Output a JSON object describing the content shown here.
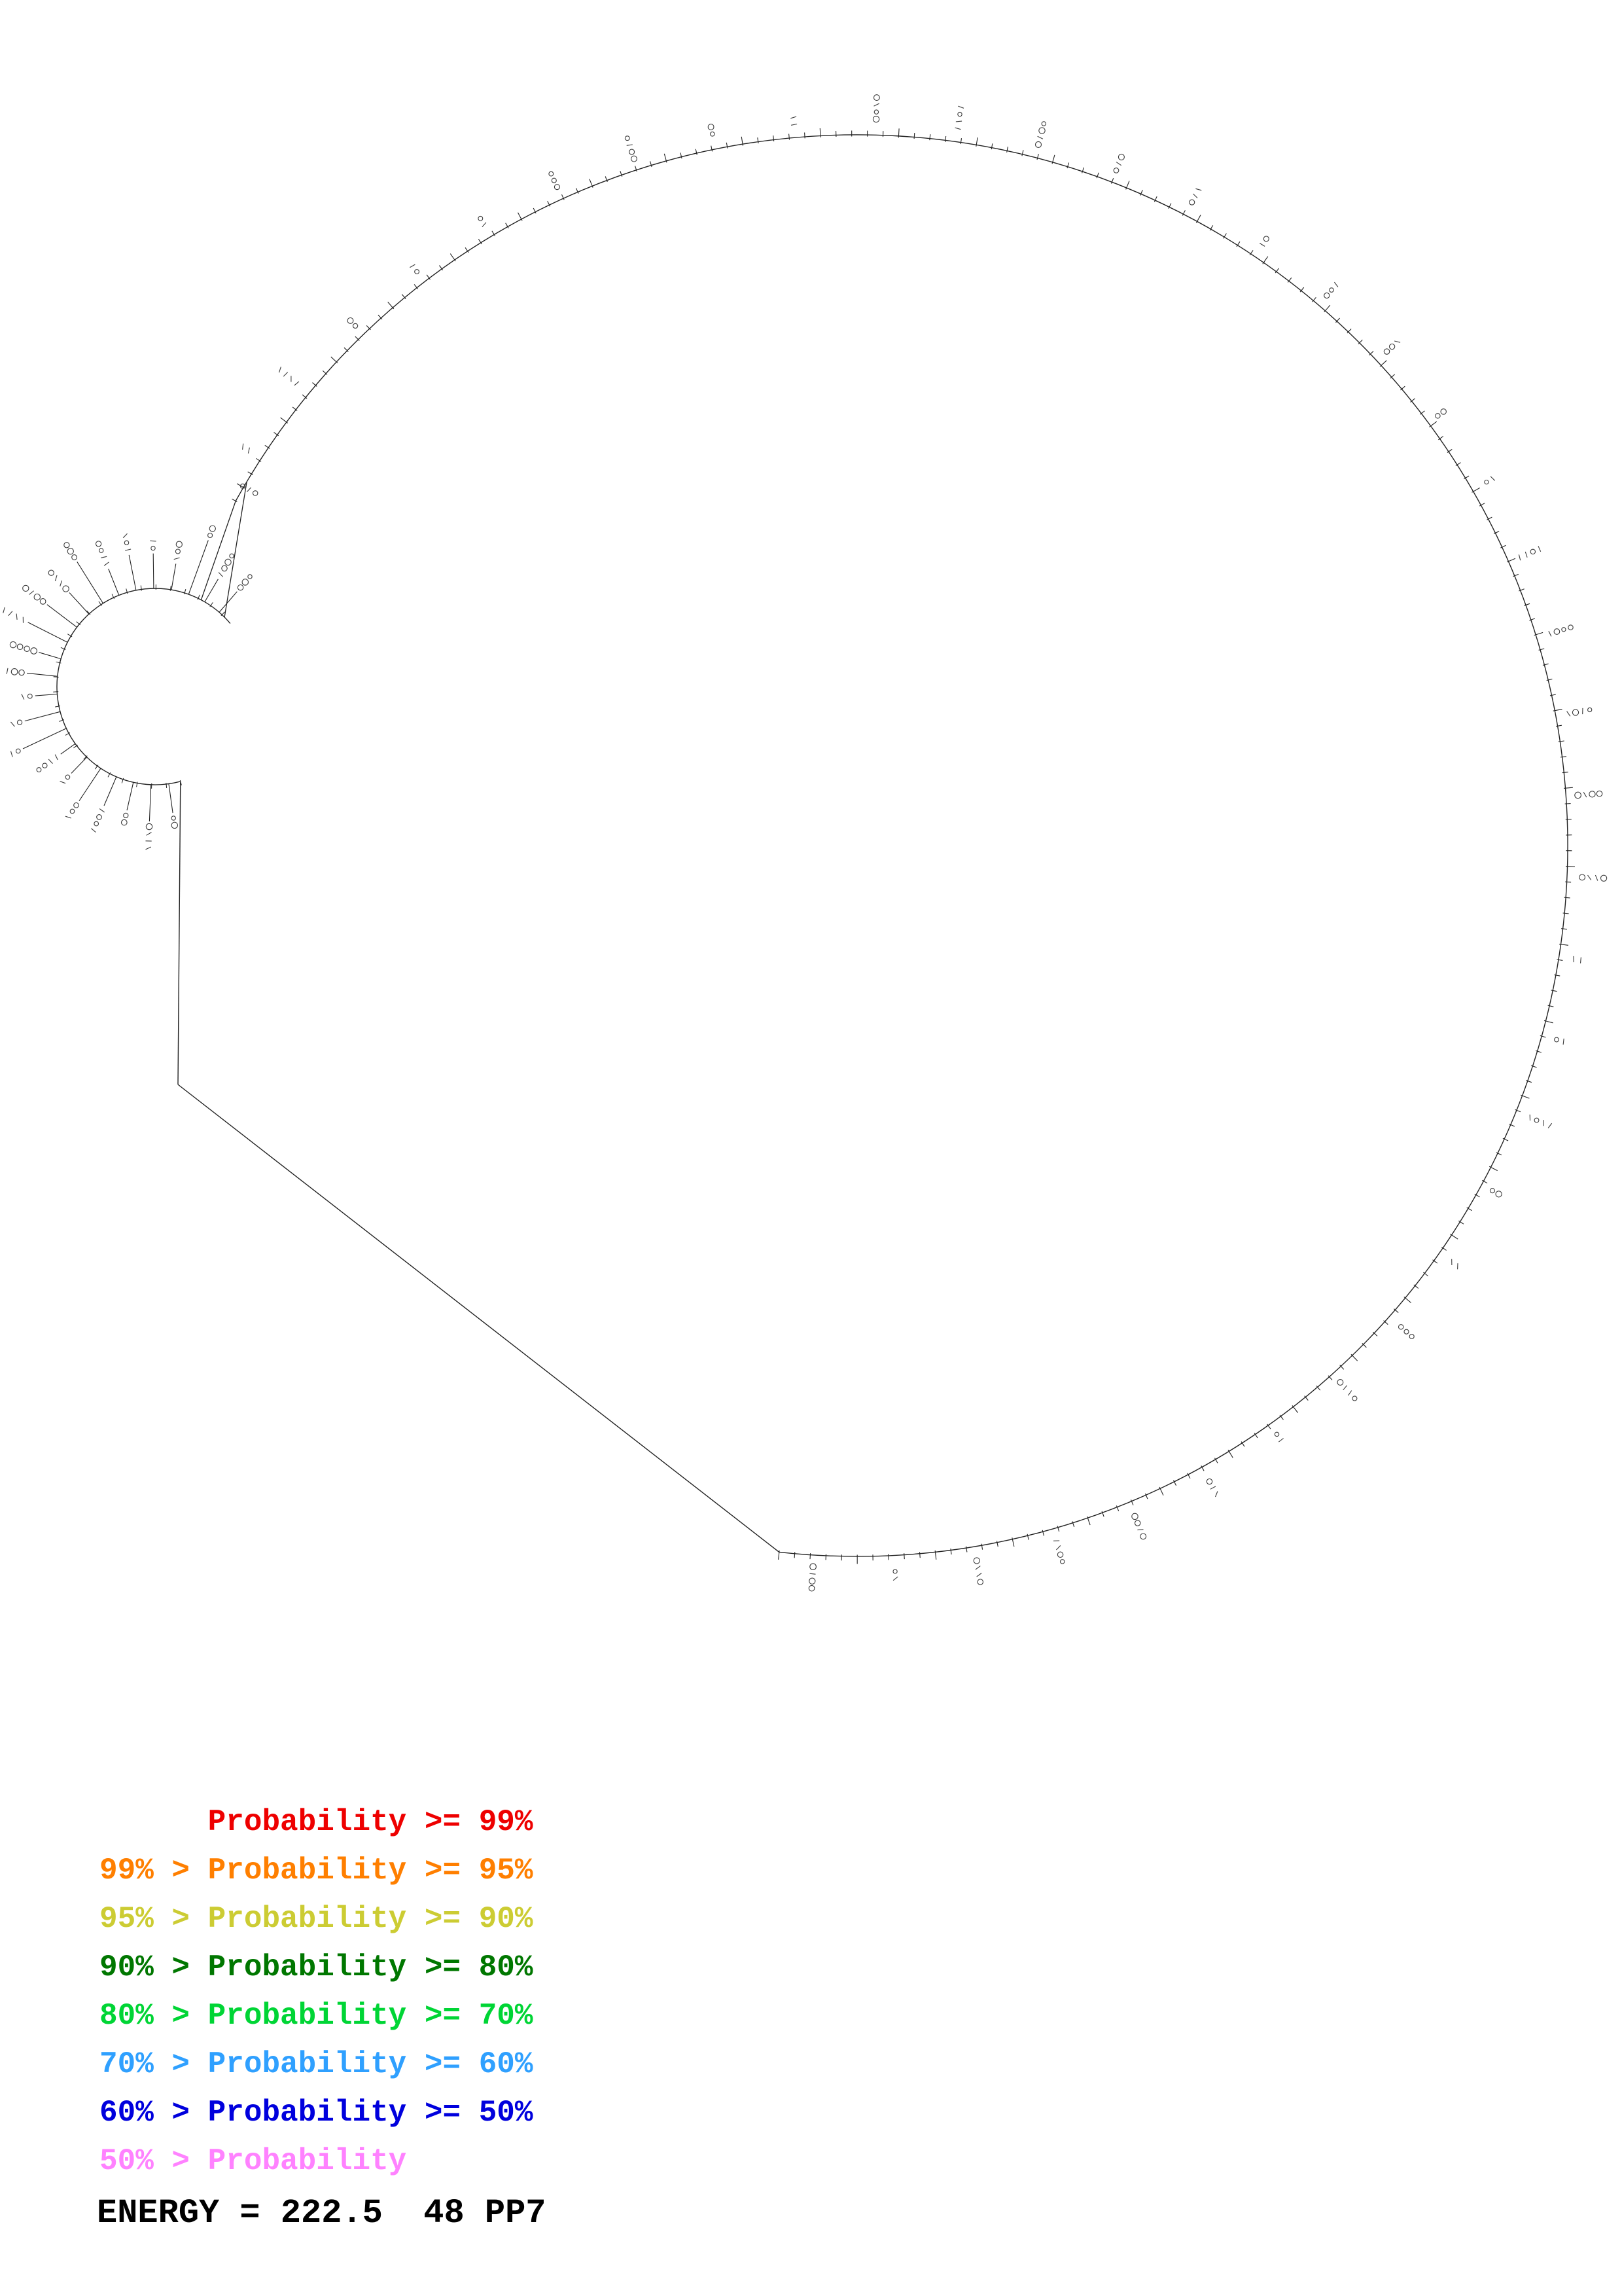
{
  "diagram": {
    "type": "rna-secondary-structure-circle-plot",
    "stroke_color": "#222222",
    "glyph_color": "#3a3a3a"
  },
  "legend": {
    "items": [
      {
        "text": "      Probability >= 99%",
        "color": "#ee0000"
      },
      {
        "text": "99% > Probability >= 95%",
        "color": "#ff7f00"
      },
      {
        "text": "95% > Probability >= 90%",
        "color": "#cccc33"
      },
      {
        "text": "90% > Probability >= 80%",
        "color": "#007700"
      },
      {
        "text": "80% > Probability >= 70%",
        "color": "#00d535"
      },
      {
        "text": "70% > Probability >= 60%",
        "color": "#2fa0ff"
      },
      {
        "text": "60% > Probability >= 50%",
        "color": "#0000dd"
      },
      {
        "text": "50% > Probability",
        "color": "#ff82ff"
      }
    ]
  },
  "energy": {
    "text": "ENERGY = 222.5  48 PP7",
    "color": "#000000"
  }
}
